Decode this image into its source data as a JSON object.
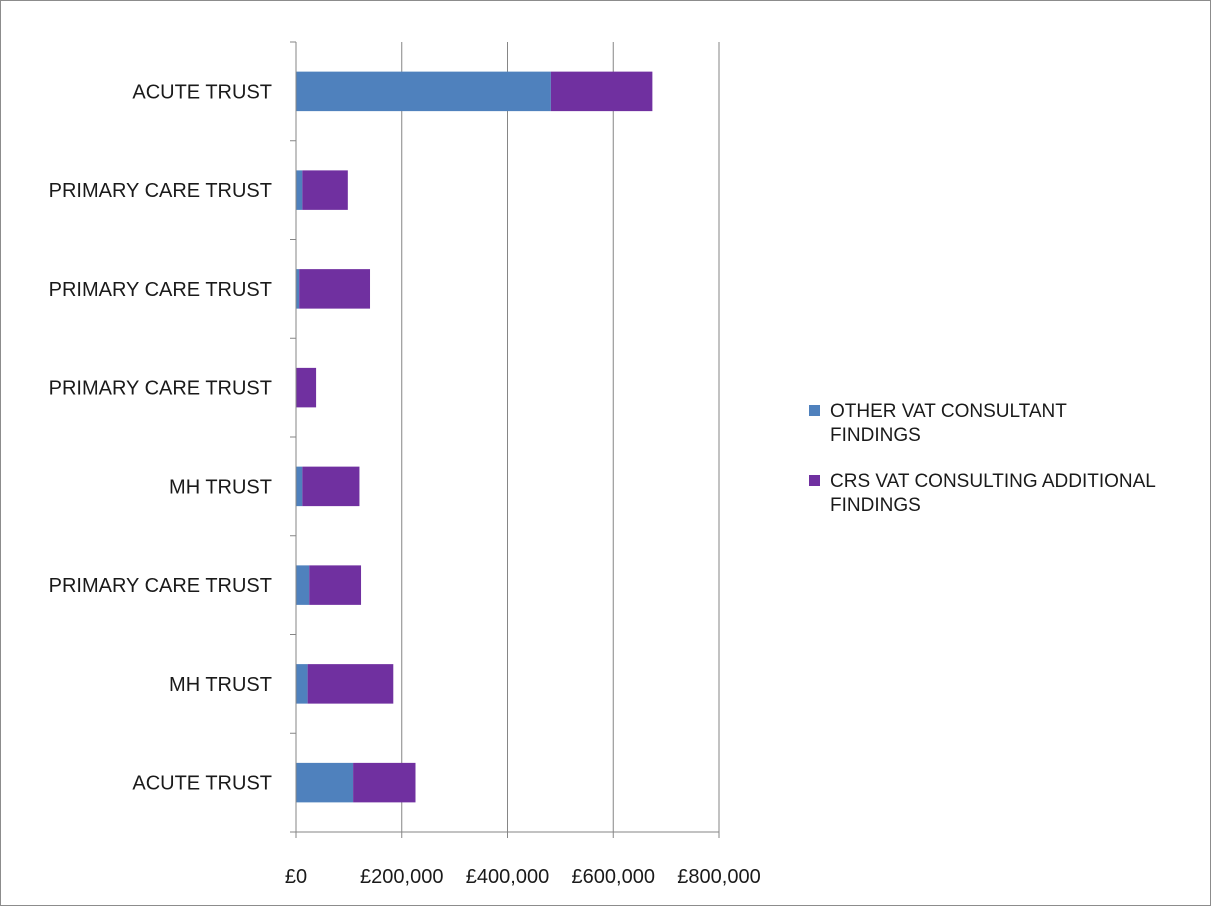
{
  "chart_data": {
    "type": "bar",
    "orientation": "horizontal",
    "stacked": true,
    "title": "",
    "xlabel": "",
    "ylabel": "",
    "categories": [
      "ACUTE TRUST",
      "MH TRUST",
      "PRIMARY CARE TRUST",
      "MH TRUST",
      "PRIMARY CARE TRUST",
      "PRIMARY CARE TRUST",
      "PRIMARY CARE TRUST",
      "ACUTE TRUST"
    ],
    "series": [
      {
        "name": "OTHER VAT CONSULTANT FINDINGS",
        "color": "#4f81bd",
        "values": [
          108000,
          22000,
          25000,
          12000,
          0,
          6000,
          12000,
          482000
        ]
      },
      {
        "name": "CRS VAT CONSULTING ADDITIONAL FINDINGS",
        "color": "#7030a0",
        "values": [
          118000,
          162000,
          98000,
          108000,
          38000,
          134000,
          86000,
          192000
        ]
      }
    ],
    "xlim": [
      0,
      800000
    ],
    "x_ticks": [
      0,
      200000,
      400000,
      600000,
      800000
    ],
    "x_tick_labels": [
      "£0",
      "£200,000",
      "£400,000",
      "£600,000",
      "£800,000"
    ],
    "grid": "vertical",
    "legend": {
      "position": "right",
      "entries": [
        {
          "lines": [
            "OTHER VAT CONSULTANT",
            "FINDINGS"
          ]
        },
        {
          "lines": [
            "CRS VAT CONSULTING ADDITIONAL",
            "FINDINGS"
          ]
        }
      ]
    }
  }
}
